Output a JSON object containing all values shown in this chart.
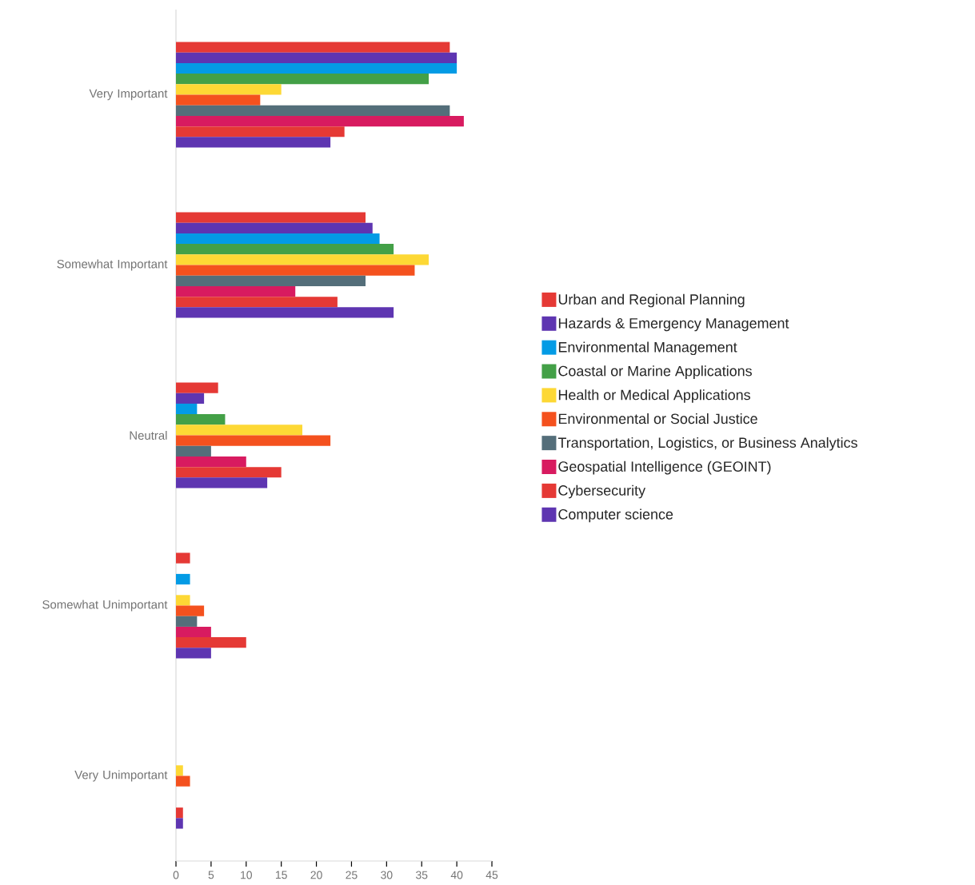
{
  "chart_data": {
    "type": "bar",
    "orientation": "horizontal",
    "categories": [
      "Very Important",
      "Somewhat Important",
      "Neutral",
      "Somewhat Unimportant",
      "Very Unimportant"
    ],
    "series": [
      {
        "name": "Urban and Regional Planning",
        "color": "#e53935",
        "values": [
          39,
          27,
          6,
          2,
          0
        ]
      },
      {
        "name": "Hazards & Emergency Management",
        "color": "#5e35b1",
        "values": [
          40,
          28,
          4,
          0,
          0
        ]
      },
      {
        "name": "Environmental Management",
        "color": "#039be5",
        "values": [
          40,
          29,
          3,
          2,
          0
        ]
      },
      {
        "name": "Coastal or Marine Applications",
        "color": "#43a047",
        "values": [
          36,
          31,
          7,
          0,
          0
        ]
      },
      {
        "name": "Health or Medical Applications",
        "color": "#fdd835",
        "values": [
          15,
          36,
          18,
          2,
          1
        ]
      },
      {
        "name": "Environmental or Social Justice",
        "color": "#f4511e",
        "values": [
          12,
          34,
          22,
          4,
          2
        ]
      },
      {
        "name": "Transportation, Logistics, or Business Analytics",
        "color": "#546e7a",
        "values": [
          39,
          27,
          5,
          3,
          0
        ]
      },
      {
        "name": "Geospatial Intelligence (GEOINT)",
        "color": "#d81b60",
        "values": [
          41,
          17,
          10,
          5,
          0
        ]
      },
      {
        "name": "Cybersecurity",
        "color": "#e53935",
        "values": [
          24,
          23,
          15,
          10,
          1
        ]
      },
      {
        "name": "Computer science",
        "color": "#5e35b1",
        "values": [
          22,
          31,
          13,
          5,
          1
        ]
      }
    ],
    "xlim": [
      0,
      45
    ],
    "xticks": [
      0,
      5,
      10,
      15,
      20,
      25,
      30,
      35,
      40,
      45
    ],
    "legend": "right"
  }
}
